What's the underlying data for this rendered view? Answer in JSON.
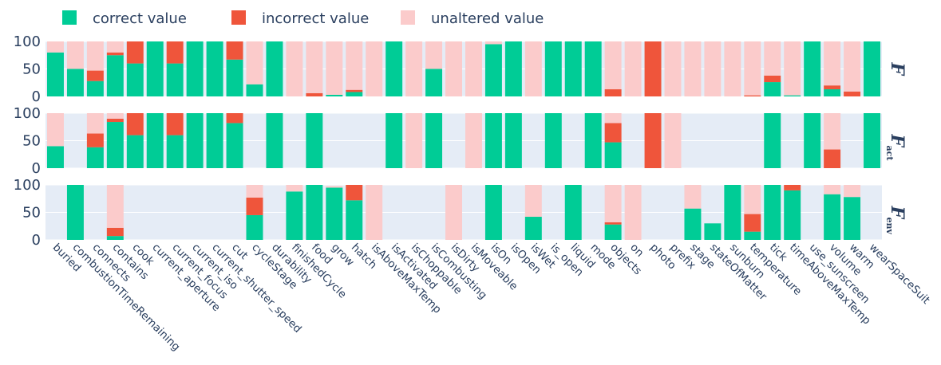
{
  "chart_data": {
    "type": "bar",
    "stacked": true,
    "legend_position": "top-left",
    "legend": [
      {
        "key": "correct",
        "label": "correct value",
        "color": "#00cc96"
      },
      {
        "key": "incorrect",
        "label": "incorrect value",
        "color": "#ef553b"
      },
      {
        "key": "unaltered",
        "label": "unaltered value",
        "color": "#fbcbcb"
      }
    ],
    "ylim": [
      0,
      100
    ],
    "yticks": [
      "0",
      "50",
      "100"
    ],
    "categories": [
      "buried",
      "combustionTimeRemaining",
      "connects",
      "contains",
      "cook",
      "current_aperture",
      "current_focus",
      "current_iso",
      "current_shutter_speed",
      "cut",
      "cycleStage",
      "durability",
      "finishedCycle",
      "food",
      "grow",
      "hatch",
      "isAboveMaxTemp",
      "isActivated",
      "isChoppable",
      "isCombusting",
      "isDirty",
      "isMoveable",
      "isOn",
      "isOpen",
      "isWet",
      "is_open",
      "liquid",
      "mode",
      "objects",
      "on",
      "photo",
      "prefix",
      "stage",
      "stateOfMatter",
      "sunburn",
      "temperature",
      "tick",
      "timeAboveMaxTemp",
      "use_sunscreen",
      "volume",
      "warm",
      "wearSpaceSuit"
    ],
    "panels": [
      {
        "label": "F",
        "subscript": "",
        "correct": [
          80,
          50,
          28,
          75,
          60,
          100,
          60,
          100,
          100,
          67,
          22,
          100,
          0,
          0,
          3,
          8,
          0,
          100,
          0,
          50,
          0,
          0,
          95,
          100,
          0,
          100,
          100,
          100,
          0,
          0,
          0,
          0,
          0,
          0,
          0,
          0,
          26,
          2,
          100,
          13,
          0,
          100
        ],
        "incorrect": [
          0,
          0,
          19,
          5,
          40,
          0,
          40,
          0,
          0,
          33,
          0,
          0,
          0,
          6,
          0,
          4,
          0,
          0,
          0,
          0,
          0,
          0,
          0,
          0,
          0,
          0,
          0,
          0,
          13,
          0,
          100,
          0,
          0,
          0,
          0,
          2,
          12,
          0,
          0,
          7,
          9,
          0
        ],
        "unaltered": [
          20,
          50,
          53,
          20,
          0,
          0,
          0,
          0,
          0,
          0,
          78,
          0,
          100,
          94,
          97,
          88,
          100,
          0,
          100,
          50,
          100,
          100,
          5,
          0,
          100,
          0,
          0,
          0,
          87,
          100,
          0,
          100,
          100,
          100,
          100,
          98,
          62,
          98,
          0,
          80,
          91,
          0
        ]
      },
      {
        "label": "F",
        "subscript": "act",
        "correct": [
          40,
          0,
          38,
          84,
          60,
          100,
          60,
          100,
          100,
          82,
          0,
          100,
          0,
          100,
          0,
          0,
          0,
          100,
          0,
          100,
          0,
          0,
          100,
          100,
          0,
          100,
          0,
          100,
          47,
          0,
          0,
          0,
          0,
          0,
          0,
          0,
          100,
          0,
          100,
          0,
          0,
          100
        ],
        "incorrect": [
          0,
          0,
          25,
          6,
          40,
          0,
          40,
          0,
          0,
          18,
          0,
          0,
          0,
          0,
          0,
          0,
          0,
          0,
          0,
          0,
          0,
          0,
          0,
          0,
          0,
          0,
          0,
          0,
          35,
          0,
          100,
          0,
          0,
          0,
          0,
          0,
          0,
          0,
          0,
          34,
          0,
          0
        ],
        "unaltered": [
          60,
          0,
          37,
          10,
          0,
          0,
          0,
          0,
          0,
          0,
          0,
          0,
          0,
          0,
          0,
          0,
          0,
          0,
          100,
          0,
          0,
          100,
          0,
          0,
          0,
          0,
          0,
          0,
          18,
          0,
          0,
          100,
          0,
          0,
          0,
          0,
          0,
          0,
          0,
          66,
          0,
          0
        ]
      },
      {
        "label": "F",
        "subscript": "env",
        "correct": [
          0,
          100,
          0,
          7,
          0,
          0,
          0,
          0,
          0,
          0,
          45,
          0,
          88,
          100,
          95,
          72,
          0,
          0,
          0,
          0,
          0,
          0,
          100,
          0,
          42,
          0,
          100,
          0,
          28,
          0,
          0,
          0,
          57,
          30,
          100,
          15,
          100,
          90,
          0,
          83,
          78,
          0
        ],
        "incorrect": [
          0,
          0,
          0,
          15,
          0,
          0,
          0,
          0,
          0,
          0,
          32,
          0,
          0,
          0,
          0,
          28,
          0,
          0,
          0,
          0,
          0,
          0,
          0,
          0,
          0,
          0,
          0,
          0,
          4,
          0,
          0,
          0,
          0,
          0,
          0,
          32,
          0,
          10,
          0,
          0,
          0,
          0
        ],
        "unaltered": [
          0,
          0,
          0,
          78,
          0,
          0,
          0,
          0,
          0,
          0,
          23,
          0,
          12,
          0,
          3,
          0,
          100,
          0,
          0,
          0,
          100,
          0,
          0,
          0,
          58,
          0,
          0,
          0,
          68,
          100,
          0,
          0,
          43,
          0,
          0,
          53,
          0,
          0,
          0,
          17,
          22,
          0
        ]
      }
    ]
  }
}
